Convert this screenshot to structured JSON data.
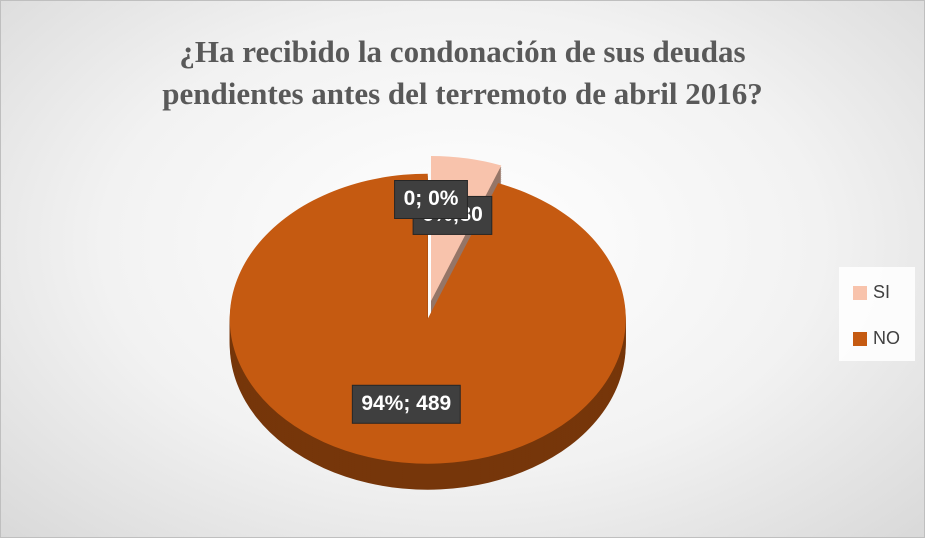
{
  "chart_data": {
    "type": "pie",
    "title": "¿Ha recibido la condonación de sus deudas pendientes antes del terremoto de abril 2016?",
    "categories": [
      "SI",
      "NO",
      null
    ],
    "values": [
      30,
      489,
      0
    ],
    "value_labels": [
      "6%;30",
      "94%; 489",
      "0; 0%"
    ],
    "colors": [
      "#f8c3ac",
      "#c55a11",
      "#e9a581"
    ],
    "legend": "right"
  }
}
